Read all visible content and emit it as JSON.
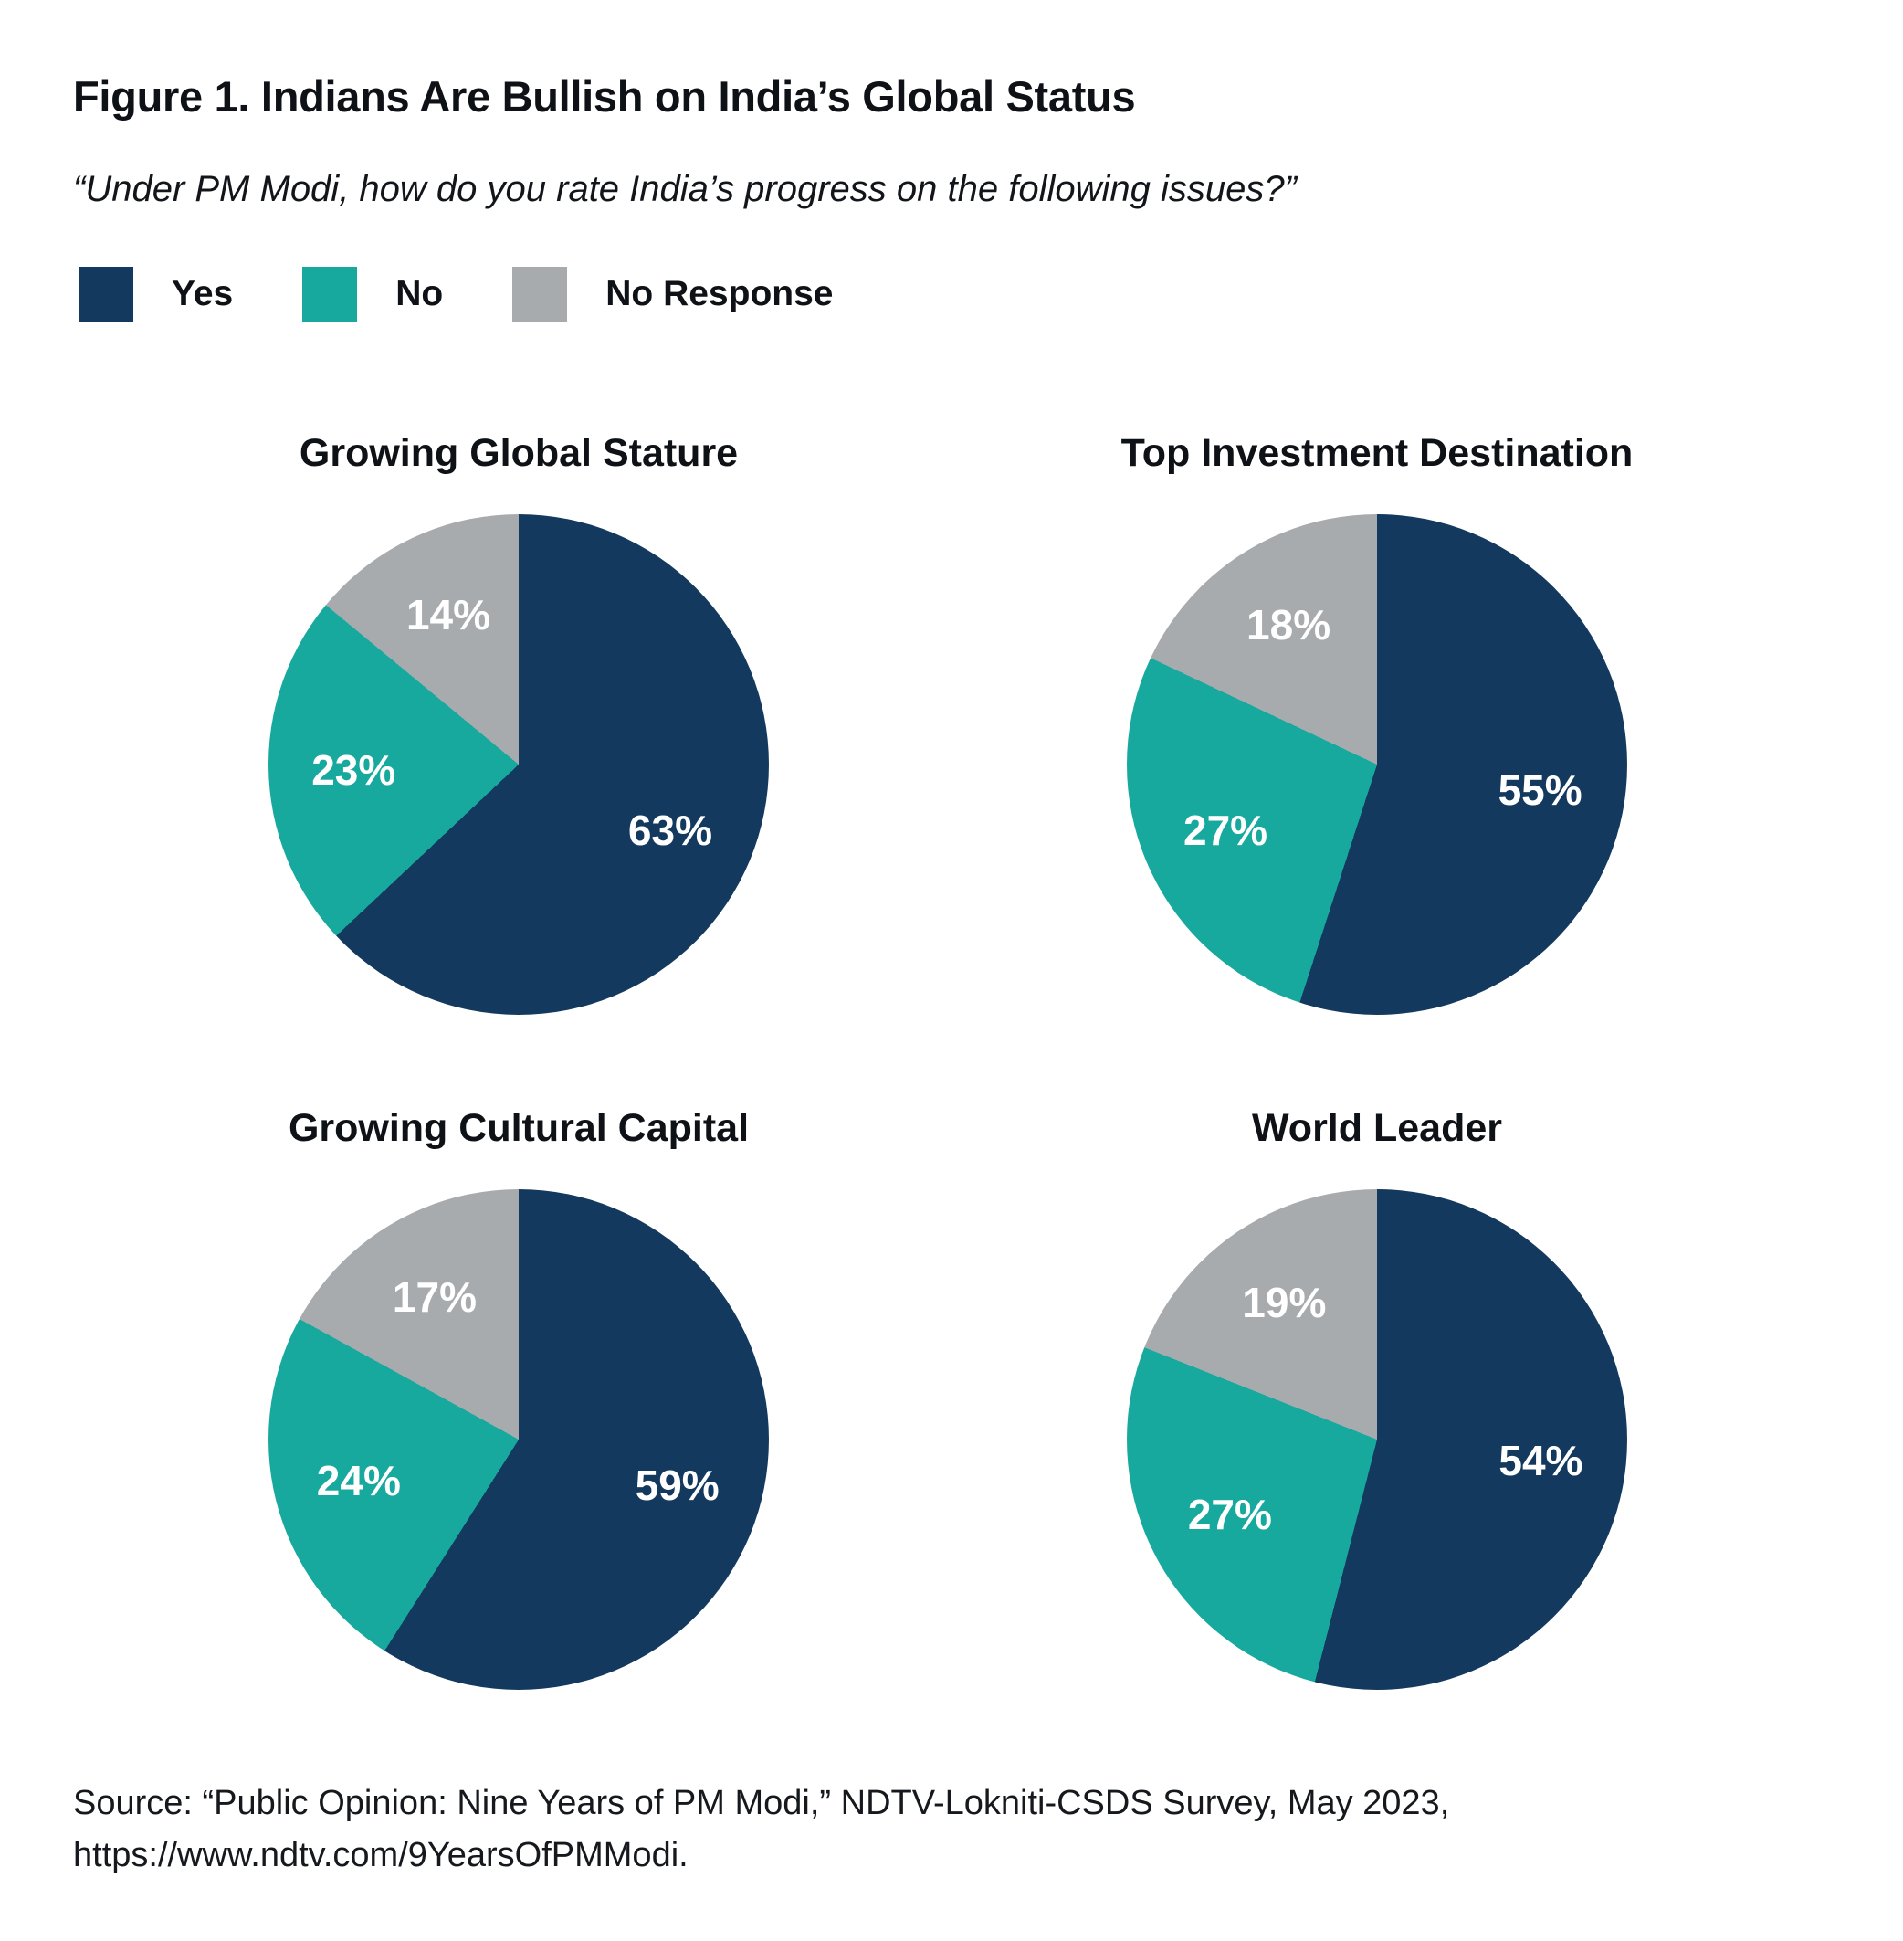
{
  "figure": {
    "title": "Figure 1. Indians Are Bullish on India’s Global Status",
    "subtitle": "“Under PM Modi, how do you rate India’s progress on the following issues?”",
    "source_line1": "Source: “Public Opinion: Nine Years of PM Modi,” NDTV-Lokniti-CSDS Survey, May 2023,",
    "source_line2": "https://www.ndtv.com/9YearsOfPMModi."
  },
  "colors": {
    "yes": "#14395E",
    "no": "#18A99E",
    "no_response": "#A8ABAE"
  },
  "legend": [
    {
      "label": "Yes",
      "color": "#14395E"
    },
    {
      "label": "No",
      "color": "#18A99E"
    },
    {
      "label": "No Response",
      "color": "#A8ABAE"
    }
  ],
  "chart_data": [
    {
      "type": "pie",
      "title": "Growing Global Stature",
      "labels": [
        "Yes",
        "No",
        "No Response"
      ],
      "values": [
        63,
        23,
        14
      ],
      "colors": [
        "#14395E",
        "#18A99E",
        "#A8ABAE"
      ],
      "value_format": "percent",
      "start_angle_deg": 0,
      "direction": "clockwise",
      "data_labels": [
        "63%",
        "23%",
        "14%"
      ]
    },
    {
      "type": "pie",
      "title": "Top Investment Destination",
      "labels": [
        "Yes",
        "No",
        "No Response"
      ],
      "values": [
        55,
        27,
        18
      ],
      "colors": [
        "#14395E",
        "#18A99E",
        "#A8ABAE"
      ],
      "value_format": "percent",
      "start_angle_deg": 0,
      "direction": "clockwise",
      "data_labels": [
        "55%",
        "27%",
        "18%"
      ]
    },
    {
      "type": "pie",
      "title": "Growing Cultural Capital",
      "labels": [
        "Yes",
        "No",
        "No Response"
      ],
      "values": [
        59,
        24,
        17
      ],
      "colors": [
        "#14395E",
        "#18A99E",
        "#A8ABAE"
      ],
      "value_format": "percent",
      "start_angle_deg": 0,
      "direction": "clockwise",
      "data_labels": [
        "59%",
        "24%",
        "17%"
      ]
    },
    {
      "type": "pie",
      "title": "World Leader",
      "labels": [
        "Yes",
        "No",
        "No Response"
      ],
      "values": [
        54,
        27,
        19
      ],
      "colors": [
        "#14395E",
        "#18A99E",
        "#A8ABAE"
      ],
      "value_format": "percent",
      "start_angle_deg": 0,
      "direction": "clockwise",
      "data_labels": [
        "54%",
        "27%",
        "19%"
      ]
    }
  ]
}
